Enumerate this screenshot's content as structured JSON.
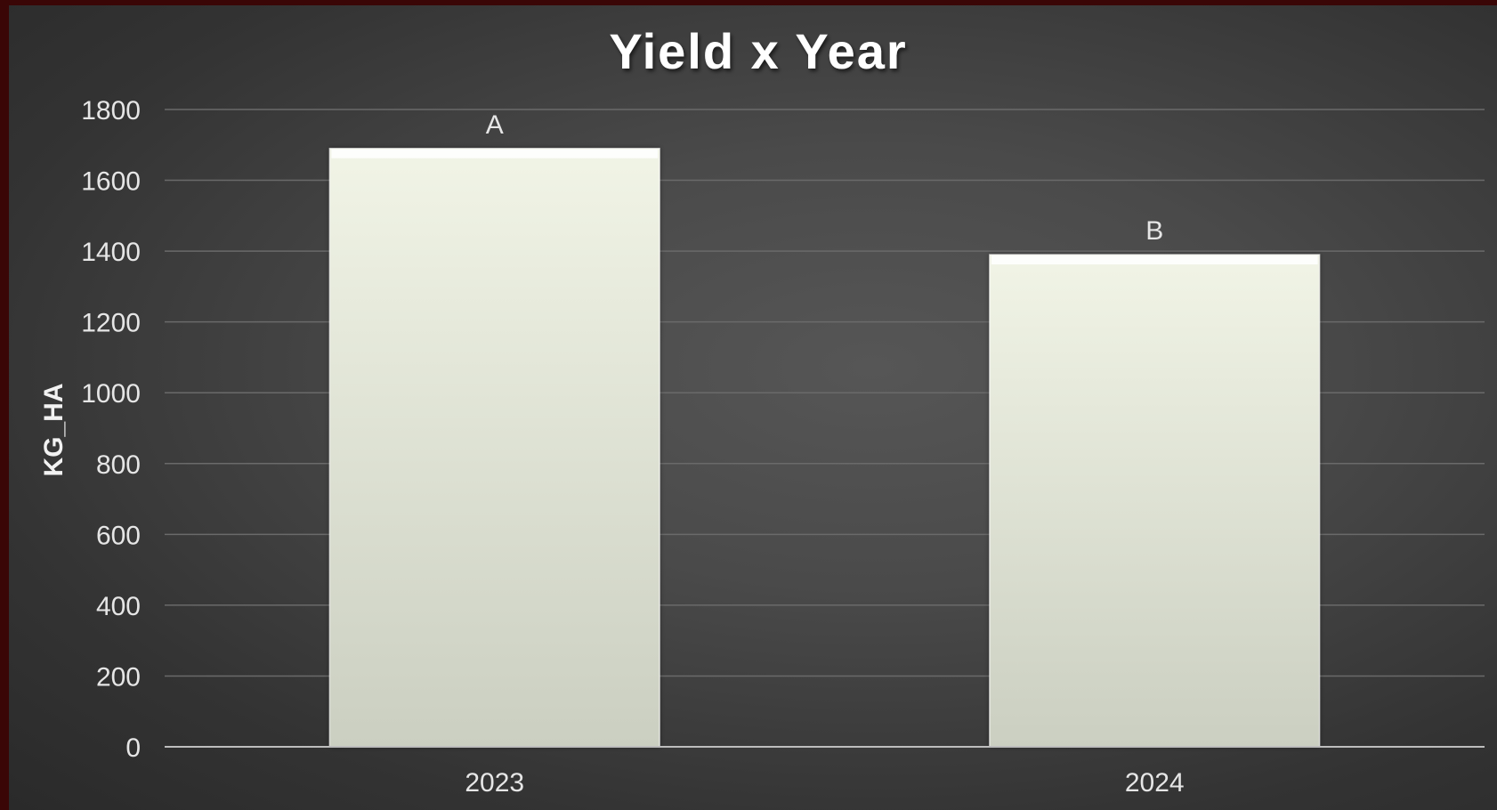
{
  "chart_data": {
    "type": "bar",
    "title": "Yield x Year",
    "xlabel": "",
    "ylabel": "KG_HA",
    "categories": [
      "2023",
      "2024"
    ],
    "values": [
      1690,
      1390
    ],
    "data_labels": [
      "A",
      "B"
    ],
    "ylim": [
      0,
      1800
    ],
    "yticks": [
      "0",
      "200",
      "400",
      "600",
      "800",
      "1000",
      "1200",
      "1400",
      "1600",
      "1800"
    ],
    "grid": true,
    "legend": "none",
    "colors": {
      "bar_top": "#f1f4e6",
      "bar_bottom": "#cbcfc1",
      "grid": "#6a6a6a",
      "axis": "#bdbdbd",
      "text": "#e6e6e6",
      "frame": "#3a0606"
    }
  }
}
